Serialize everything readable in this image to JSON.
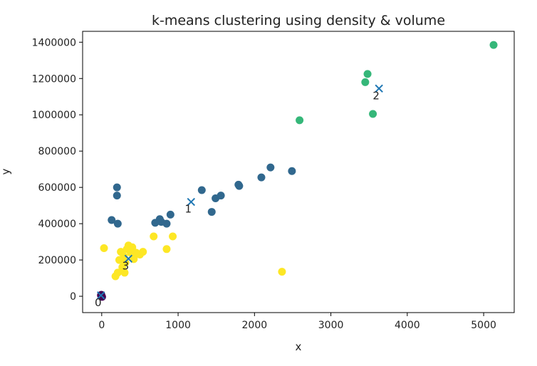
{
  "chart_data": {
    "type": "scatter",
    "title": "k-means clustering using density & volume",
    "xlabel": "x",
    "ylabel": "y",
    "xlim": [
      -250,
      5400
    ],
    "ylim": [
      -90000,
      1460000
    ],
    "xticks": [
      0,
      1000,
      2000,
      3000,
      4000,
      5000
    ],
    "yticks": [
      0,
      200000,
      400000,
      600000,
      800000,
      1000000,
      1200000,
      1400000
    ],
    "colors": {
      "cluster_0": "#440154",
      "cluster_1": "#31688e",
      "cluster_2": "#35b779",
      "cluster_3": "#fde725",
      "centroid": "#1f77b4"
    },
    "series": [
      {
        "cluster": 0,
        "color": "#440154",
        "points": [
          [
            -10,
            5000
          ],
          [
            0,
            0
          ],
          [
            -5,
            8000
          ],
          [
            5,
            -3000
          ]
        ]
      },
      {
        "cluster": 1,
        "color": "#31688e",
        "points": [
          [
            200,
            600000
          ],
          [
            200,
            555000
          ],
          [
            130,
            420000
          ],
          [
            210,
            400000
          ],
          [
            700,
            405000
          ],
          [
            760,
            425000
          ],
          [
            780,
            410000
          ],
          [
            850,
            400000
          ],
          [
            900,
            450000
          ],
          [
            1310,
            585000
          ],
          [
            1440,
            465000
          ],
          [
            1490,
            540000
          ],
          [
            1560,
            555000
          ],
          [
            1790,
            615000
          ],
          [
            1800,
            608000
          ],
          [
            2090,
            655000
          ],
          [
            2210,
            710000
          ],
          [
            2490,
            690000
          ]
        ]
      },
      {
        "cluster": 2,
        "color": "#35b779",
        "points": [
          [
            2590,
            970000
          ],
          [
            3450,
            1180000
          ],
          [
            3480,
            1225000
          ],
          [
            3550,
            1005000
          ],
          [
            5130,
            1385000
          ]
        ]
      },
      {
        "cluster": 3,
        "color": "#fde725",
        "points": [
          [
            30,
            265000
          ],
          [
            180,
            110000
          ],
          [
            210,
            130000
          ],
          [
            230,
            200000
          ],
          [
            250,
            245000
          ],
          [
            270,
            160000
          ],
          [
            290,
            220000
          ],
          [
            300,
            130000
          ],
          [
            310,
            185000
          ],
          [
            330,
            260000
          ],
          [
            350,
            280000
          ],
          [
            380,
            240000
          ],
          [
            400,
            270000
          ],
          [
            420,
            205000
          ],
          [
            450,
            240000
          ],
          [
            500,
            230000
          ],
          [
            540,
            245000
          ],
          [
            680,
            330000
          ],
          [
            850,
            260000
          ],
          [
            930,
            330000
          ],
          [
            2360,
            135000
          ]
        ]
      }
    ],
    "centroids": [
      {
        "label": "0",
        "x": -10,
        "y": 5000
      },
      {
        "label": "1",
        "x": 1170,
        "y": 520000
      },
      {
        "label": "2",
        "x": 3630,
        "y": 1145000
      },
      {
        "label": "3",
        "x": 350,
        "y": 207000
      }
    ]
  }
}
